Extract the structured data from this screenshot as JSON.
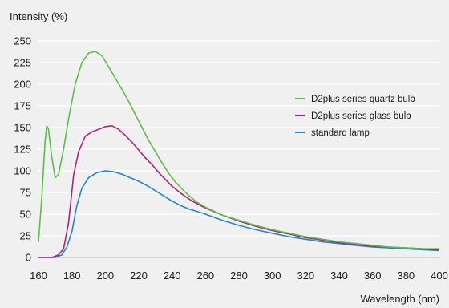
{
  "chart_data": {
    "type": "line",
    "ylabel": "Intensity (%)",
    "xlabel": "Wavelength (nm)",
    "xlim": [
      160,
      400
    ],
    "ylim": [
      0,
      250
    ],
    "x_ticks": [
      160,
      180,
      200,
      220,
      240,
      260,
      280,
      300,
      320,
      340,
      360,
      380,
      400
    ],
    "y_ticks": [
      0,
      25,
      50,
      75,
      100,
      125,
      150,
      175,
      200,
      225,
      250
    ],
    "grid": "horizontal",
    "legend_position": "right",
    "background": "#f0f0f0",
    "series": [
      {
        "name": "D2plus series quartz bulb",
        "color": "#5bbf46",
        "points": [
          [
            160,
            18
          ],
          [
            162,
            70
          ],
          [
            164,
            135
          ],
          [
            165,
            152
          ],
          [
            166,
            148
          ],
          [
            168,
            115
          ],
          [
            170,
            92
          ],
          [
            172,
            96
          ],
          [
            175,
            125
          ],
          [
            178,
            160
          ],
          [
            182,
            200
          ],
          [
            186,
            225
          ],
          [
            190,
            236
          ],
          [
            194,
            238
          ],
          [
            198,
            233
          ],
          [
            202,
            220
          ],
          [
            206,
            207
          ],
          [
            210,
            194
          ],
          [
            214,
            180
          ],
          [
            218,
            165
          ],
          [
            222,
            150
          ],
          [
            226,
            135
          ],
          [
            230,
            122
          ],
          [
            234,
            109
          ],
          [
            238,
            97
          ],
          [
            242,
            87
          ],
          [
            248,
            75
          ],
          [
            254,
            65
          ],
          [
            260,
            58
          ],
          [
            270,
            49
          ],
          [
            280,
            43
          ],
          [
            290,
            37
          ],
          [
            300,
            32
          ],
          [
            310,
            28
          ],
          [
            320,
            24
          ],
          [
            330,
            21
          ],
          [
            340,
            18
          ],
          [
            350,
            16
          ],
          [
            360,
            14
          ],
          [
            370,
            12
          ],
          [
            380,
            11
          ],
          [
            390,
            10
          ],
          [
            400,
            10
          ]
        ]
      },
      {
        "name": "D2plus series glass bulb",
        "color": "#b2207e",
        "points": [
          [
            160,
            0
          ],
          [
            168,
            0
          ],
          [
            172,
            3
          ],
          [
            175,
            10
          ],
          [
            178,
            40
          ],
          [
            181,
            95
          ],
          [
            184,
            122
          ],
          [
            188,
            140
          ],
          [
            192,
            145
          ],
          [
            196,
            148
          ],
          [
            200,
            151
          ],
          [
            204,
            152
          ],
          [
            208,
            148
          ],
          [
            212,
            141
          ],
          [
            216,
            133
          ],
          [
            220,
            124
          ],
          [
            224,
            115
          ],
          [
            228,
            107
          ],
          [
            232,
            98
          ],
          [
            236,
            90
          ],
          [
            240,
            82
          ],
          [
            246,
            73
          ],
          [
            252,
            65
          ],
          [
            260,
            57
          ],
          [
            270,
            49
          ],
          [
            280,
            42
          ],
          [
            290,
            36
          ],
          [
            300,
            31
          ],
          [
            310,
            27
          ],
          [
            320,
            23
          ],
          [
            330,
            20
          ],
          [
            340,
            17
          ],
          [
            350,
            15
          ],
          [
            360,
            13
          ],
          [
            370,
            12
          ],
          [
            380,
            11
          ],
          [
            390,
            10
          ],
          [
            400,
            9
          ]
        ]
      },
      {
        "name": "standard lamp",
        "color": "#2187c9",
        "points": [
          [
            160,
            0
          ],
          [
            170,
            0
          ],
          [
            174,
            3
          ],
          [
            177,
            12
          ],
          [
            180,
            30
          ],
          [
            183,
            60
          ],
          [
            186,
            80
          ],
          [
            190,
            92
          ],
          [
            195,
            98
          ],
          [
            200,
            100
          ],
          [
            205,
            99
          ],
          [
            210,
            96
          ],
          [
            215,
            92
          ],
          [
            220,
            88
          ],
          [
            225,
            83
          ],
          [
            230,
            77
          ],
          [
            235,
            71
          ],
          [
            240,
            65
          ],
          [
            245,
            60
          ],
          [
            250,
            56
          ],
          [
            260,
            50
          ],
          [
            270,
            43
          ],
          [
            280,
            37
          ],
          [
            290,
            32
          ],
          [
            300,
            28
          ],
          [
            310,
            24
          ],
          [
            320,
            21
          ],
          [
            330,
            18
          ],
          [
            340,
            16
          ],
          [
            350,
            14
          ],
          [
            360,
            12
          ],
          [
            370,
            11
          ],
          [
            380,
            10
          ],
          [
            390,
            9
          ],
          [
            400,
            8
          ]
        ]
      }
    ]
  }
}
